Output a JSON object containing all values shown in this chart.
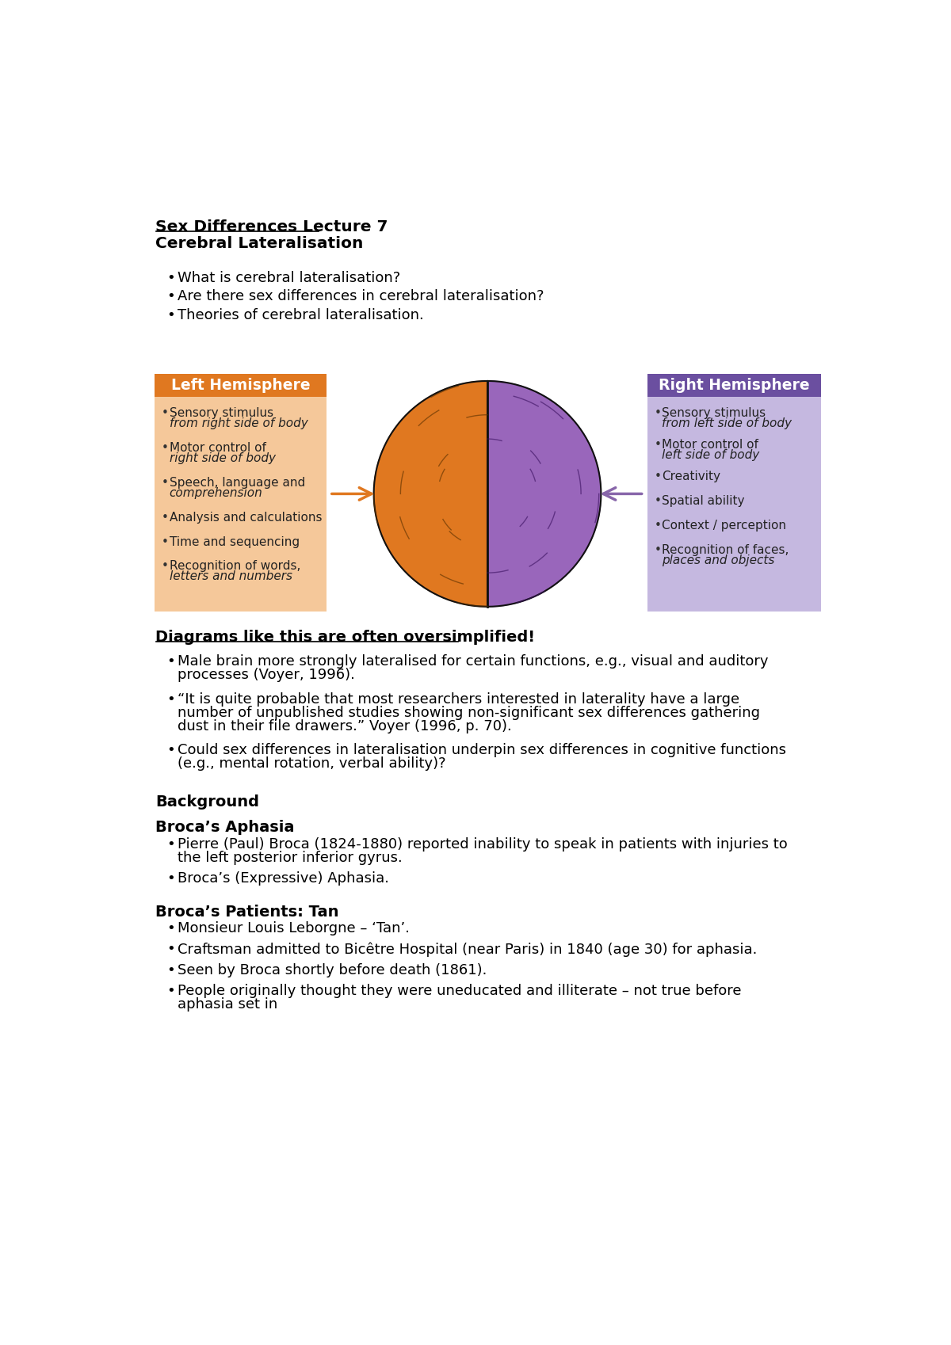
{
  "bg_color": "#ffffff",
  "title_line1": "Sex Differences Lecture 7",
  "title_line2": "Cerebral Lateralisation",
  "intro_bullets": [
    "What is cerebral lateralisation?",
    "Are there sex differences in cerebral lateralisation?",
    "Theories of cerebral lateralisation."
  ],
  "left_header": "Left Hemisphere",
  "left_header_bg": "#e07820",
  "left_box_bg": "#f5c89a",
  "left_items": [
    "Sensory stimulus\nfrom right side of body",
    "Motor control of\nright side of body",
    "Speech, language and\ncomprehension",
    "Analysis and calculations",
    "Time and sequencing",
    "Recognition of words,\nletters and numbers"
  ],
  "right_header": "Right Hemisphere",
  "right_header_bg": "#6b4fa0",
  "right_box_bg": "#c5b8e0",
  "right_items": [
    "Sensory stimulus\nfrom left side of body",
    "Motor control of\nleft side of body",
    "Creativity",
    "Spatial ability",
    "Context / perception",
    "Recognition of faces,\nplaces and objects"
  ],
  "oversimplified_heading": "Diagrams like this are often oversimplified!",
  "oversimplified_bullets": [
    "Male brain more strongly lateralised for certain functions, e.g., visual and auditory\nprocesses (Voyer, 1996).",
    "“It is quite probable that most researchers interested in laterality have a large\nnumber of unpublished studies showing non-significant sex differences gathering\ndust in their file drawers.” Voyer (1996, p. 70).",
    "Could sex differences in lateralisation underpin sex differences in cognitive functions\n(e.g., mental rotation, verbal ability)?"
  ],
  "background_heading": "Background",
  "broca_aphasia_heading": "Broca’s Aphasia",
  "broca_aphasia_bullets": [
    "Pierre (Paul) Broca (1824-1880) reported inability to speak in patients with injuries to\nthe left posterior inferior gyrus.",
    "Broca’s (Expressive) Aphasia."
  ],
  "broca_patients_heading": "Broca’s Patients: Tan",
  "broca_patients_bullets": [
    "Monsieur Louis Leborgne – ‘Tan’.",
    "Craftsman admitted to Bicêtre Hospital (near Paris) in 1840 (age 30) for aphasia.",
    "Seen by Broca shortly before death (1861).",
    "People originally thought they were uneducated and illiterate – not true before\naphasia set in"
  ],
  "left_brain_color": "#e07820",
  "right_brain_color": "#9966bb",
  "brain_outline_color": "#111111",
  "arrow_left_color": "#e07820",
  "arrow_right_color": "#8866aa"
}
